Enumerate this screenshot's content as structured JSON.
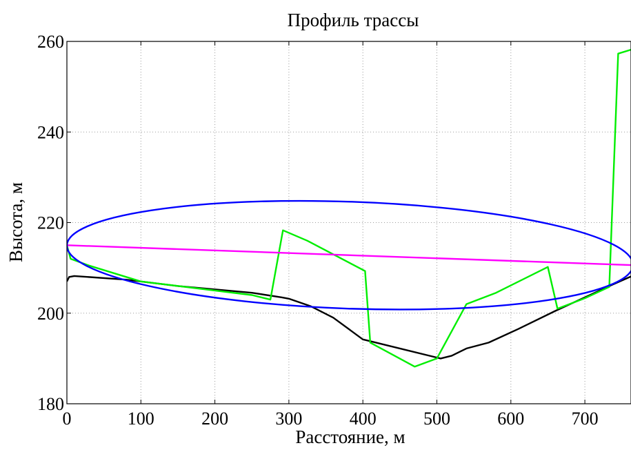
{
  "chart_data": {
    "type": "line",
    "title": "Профиль трассы",
    "xlabel": "Расстояние, м",
    "ylabel": "Высота, м",
    "xlim": [
      0,
      765
    ],
    "ylim": [
      180,
      260
    ],
    "grid": true,
    "x_ticks": [
      0,
      100,
      200,
      300,
      400,
      500,
      600,
      700
    ],
    "y_ticks": [
      180,
      200,
      220,
      240,
      260
    ],
    "x_tick_labels": [
      "0",
      "100",
      "200",
      "300",
      "400",
      "500",
      "600",
      "700"
    ],
    "y_tick_labels": [
      "180",
      "200",
      "220",
      "240",
      "260"
    ],
    "series": [
      {
        "color": "#000000",
        "points": [
          [
            0,
            207
          ],
          [
            3,
            208
          ],
          [
            10,
            208.2
          ],
          [
            80,
            207.4
          ],
          [
            150,
            206
          ],
          [
            250,
            204.5
          ],
          [
            290,
            203.5
          ],
          [
            300,
            203.2
          ],
          [
            330,
            201.5
          ],
          [
            360,
            199
          ],
          [
            400,
            194.2
          ],
          [
            405,
            194
          ],
          [
            505,
            190
          ],
          [
            520,
            190.6
          ],
          [
            540,
            192.2
          ],
          [
            570,
            193.5
          ],
          [
            610,
            196.5
          ],
          [
            660,
            200.5
          ],
          [
            700,
            203.5
          ],
          [
            740,
            206.5
          ],
          [
            765,
            208.3
          ]
        ]
      },
      {
        "color": "#00ee00",
        "points": [
          [
            0,
            215
          ],
          [
            5,
            212
          ],
          [
            30,
            210.5
          ],
          [
            100,
            207
          ],
          [
            250,
            204
          ],
          [
            275,
            203
          ],
          [
            292,
            218.3
          ],
          [
            325,
            216
          ],
          [
            403,
            209.3
          ],
          [
            410,
            193.5
          ],
          [
            470,
            188.2
          ],
          [
            500,
            190
          ],
          [
            540,
            202
          ],
          [
            580,
            204.5
          ],
          [
            650,
            210.2
          ],
          [
            663,
            201
          ],
          [
            700,
            203.3
          ],
          [
            733,
            205.8
          ],
          [
            745,
            257.3
          ],
          [
            765,
            258.3
          ]
        ]
      },
      {
        "color": "#ff00ff",
        "points": [
          [
            0,
            215
          ],
          [
            765,
            210.6
          ]
        ]
      },
      {
        "color": "#0000ff",
        "ellipse": {
          "center_x": 382.5,
          "center_y": 212.8,
          "radius_x": 382.5,
          "radius_y": 11.8,
          "tilt_start": [
            0,
            215
          ],
          "tilt_end": [
            765,
            210.6
          ]
        }
      }
    ]
  }
}
